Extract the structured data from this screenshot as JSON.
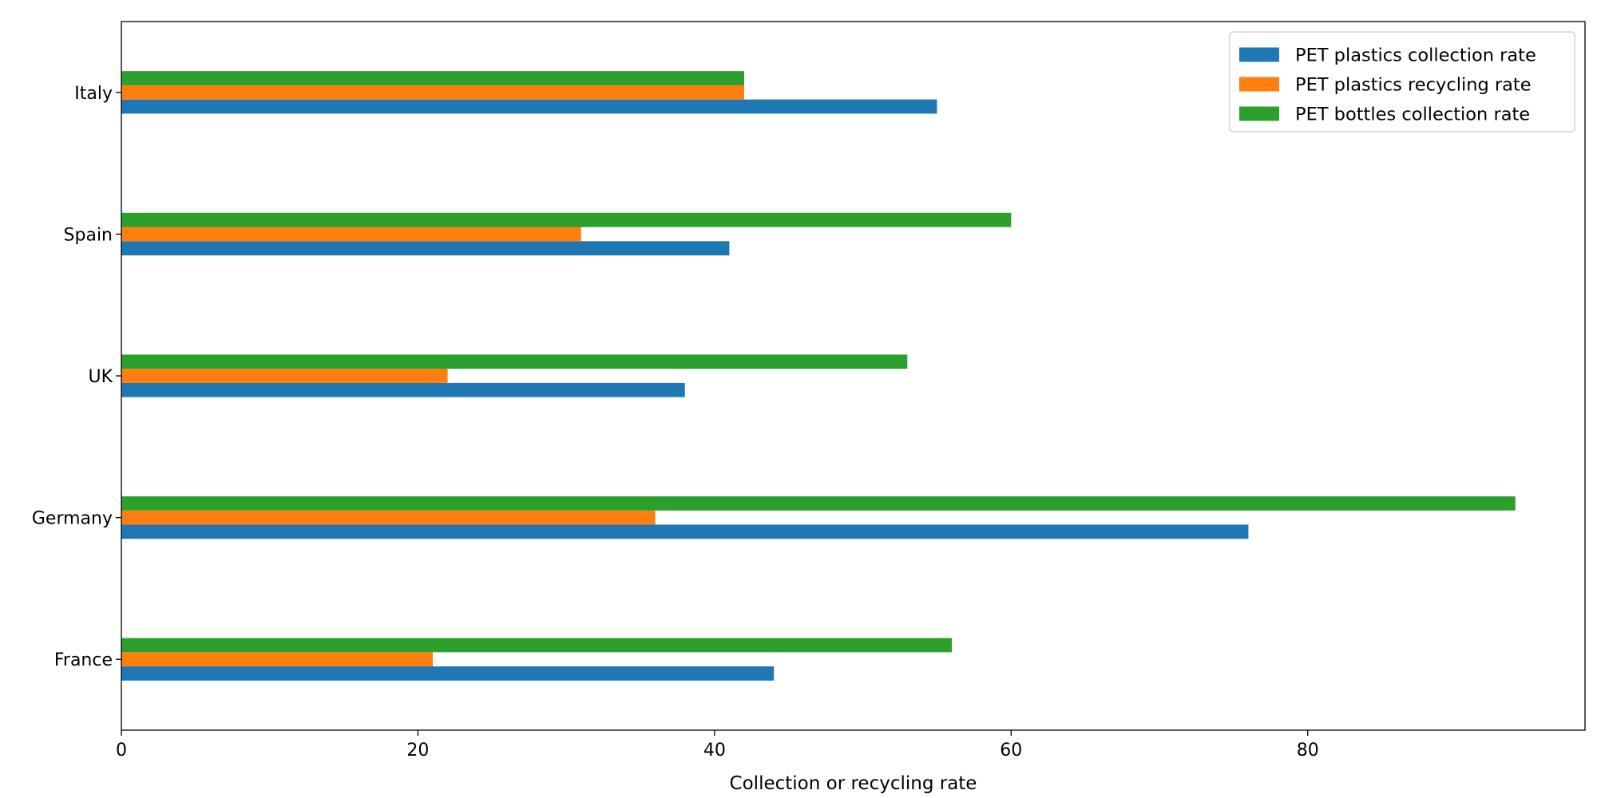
{
  "chart_data": {
    "type": "bar",
    "orientation": "horizontal",
    "title": "",
    "xlabel": "Collection or recycling rate",
    "ylabel": "",
    "xlim": [
      0,
      98.7
    ],
    "xticks": [
      0,
      20,
      40,
      60,
      80
    ],
    "grid": false,
    "legend_position": "top-right",
    "categories": [
      "France",
      "Germany",
      "UK",
      "Spain",
      "Italy"
    ],
    "series": [
      {
        "name": "PET plastics collection rate",
        "color": "#1f77b4",
        "values": [
          44,
          76,
          38,
          41,
          55
        ]
      },
      {
        "name": "PET plastics recycling rate",
        "color": "#ff7f0e",
        "values": [
          21,
          36,
          22,
          31,
          42
        ]
      },
      {
        "name": "PET bottles collection rate",
        "color": "#2ca02c",
        "values": [
          56,
          94,
          53,
          60,
          42
        ]
      }
    ]
  }
}
